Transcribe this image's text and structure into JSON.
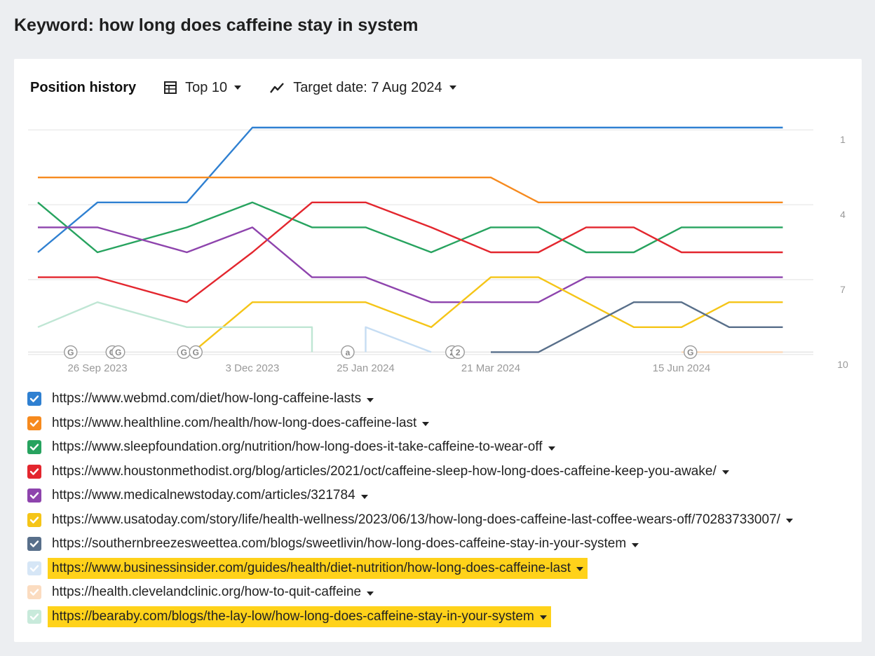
{
  "page": {
    "title": "Keyword: how long does caffeine stay in system"
  },
  "toolbar": {
    "title": "Position history",
    "top_label": "Top 10",
    "target_label": "Target date: 7 Aug 2024"
  },
  "icons": {
    "top": "table-icon",
    "target": "trend-line-icon",
    "check": "checkmark-icon",
    "dropdown": "caret-down-icon"
  },
  "chart_data": {
    "type": "line",
    "x_ticks": [
      "26 Sep 2023",
      "3 Dec 2023",
      "25 Jan 2024",
      "21 Mar 2024",
      "15 Jun 2024"
    ],
    "x_tick_index": [
      1.0,
      3.6,
      5.5,
      7.6,
      10.8
    ],
    "y_ticks": [
      "1",
      "4",
      "7",
      "10"
    ],
    "y_reversed": true,
    "ylim": [
      0,
      9
    ],
    "y_tick_values": [
      0.6,
      3.6,
      6.6,
      9.6
    ],
    "grid": true,
    "series": [
      {
        "name": "https://www.webmd.com/diet/how-long-caffeine-lasts",
        "color": "#2f80d1",
        "points": [
          [
            0,
            5
          ],
          [
            1,
            3
          ],
          [
            2.5,
            3
          ],
          [
            3.6,
            0
          ],
          [
            12.5,
            0
          ]
        ]
      },
      {
        "name": "https://www.healthline.com/health/how-long-does-caffeine-last",
        "color": "#f68a1e",
        "points": [
          [
            0,
            2
          ],
          [
            7.6,
            2
          ],
          [
            8.4,
            3
          ],
          [
            12.5,
            3
          ]
        ]
      },
      {
        "name": "https://www.sleepfoundation.org/nutrition/how-long-does-it-take-caffeine-to-wear-off",
        "color": "#27a35f",
        "points": [
          [
            0,
            3
          ],
          [
            1,
            5
          ],
          [
            2.5,
            4
          ],
          [
            3.6,
            3
          ],
          [
            4.6,
            4
          ],
          [
            5.5,
            4
          ],
          [
            6.6,
            5
          ],
          [
            7.6,
            4
          ],
          [
            8.4,
            4
          ],
          [
            9.2,
            5
          ],
          [
            10,
            5
          ],
          [
            10.8,
            4
          ],
          [
            12.5,
            4
          ]
        ]
      },
      {
        "name": "https://www.houstonmethodist.org/blog/articles/2021/oct/caffeine-sleep-how-long-does-caffeine-keep-you-awake/",
        "color": "#e3262e",
        "points": [
          [
            0,
            6
          ],
          [
            1,
            6
          ],
          [
            2.5,
            7
          ],
          [
            3.6,
            5
          ],
          [
            4.6,
            3
          ],
          [
            5.5,
            3
          ],
          [
            6.6,
            4
          ],
          [
            7.6,
            5
          ],
          [
            8.4,
            5
          ],
          [
            9.2,
            4
          ],
          [
            10,
            4
          ],
          [
            10.8,
            5
          ],
          [
            12.5,
            5
          ]
        ]
      },
      {
        "name": "https://www.medicalnewstoday.com/articles/321784",
        "color": "#8e44ad",
        "points": [
          [
            0,
            4
          ],
          [
            1,
            4
          ],
          [
            2.5,
            5
          ],
          [
            3.6,
            4
          ],
          [
            4.6,
            6
          ],
          [
            5.5,
            6
          ],
          [
            6.6,
            7
          ],
          [
            7.6,
            7
          ],
          [
            8.4,
            7
          ],
          [
            9.2,
            6
          ],
          [
            12.5,
            6
          ]
        ]
      },
      {
        "name": "https://www.usatoday.com/story/life/health-wellness/2023/06/13/how-long-does-caffeine-last-coffee-wears-off/70283733007/",
        "color": "#f5c518",
        "points": [
          [
            2.6,
            9
          ],
          [
            3.6,
            7
          ],
          [
            5.5,
            7
          ],
          [
            6.6,
            8
          ],
          [
            7.6,
            6
          ],
          [
            8.4,
            6
          ],
          [
            9.2,
            7
          ],
          [
            10,
            8
          ],
          [
            10.8,
            8
          ],
          [
            11.6,
            7
          ],
          [
            12.5,
            7
          ]
        ]
      },
      {
        "name": "https://southernbreezesweettea.com/blogs/sweetlivin/how-long-does-caffeine-stay-in-your-system",
        "color": "#586f8a",
        "points": [
          [
            7.6,
            9
          ],
          [
            8.4,
            9
          ],
          [
            9.2,
            8
          ],
          [
            10,
            7
          ],
          [
            10.8,
            7
          ],
          [
            11.6,
            8
          ],
          [
            12.5,
            8
          ]
        ]
      },
      {
        "name": "https://www.businessinsider.com/guides/health/diet-nutrition/how-long-does-caffeine-last",
        "color": "#c6ddf3",
        "points": [
          [
            5.5,
            9
          ],
          [
            5.5,
            8
          ],
          [
            6.6,
            9
          ]
        ]
      },
      {
        "name": "https://health.clevelandclinic.org/how-to-quit-caffeine",
        "color": "#fbd8b8",
        "points": [
          [
            10.8,
            9
          ],
          [
            12.5,
            9
          ]
        ]
      },
      {
        "name": "https://bearaby.com/blogs/the-lay-low/how-long-does-caffeine-stay-in-your-system",
        "color": "#bfe6d4",
        "points": [
          [
            0,
            8
          ],
          [
            1,
            7
          ],
          [
            2.5,
            8
          ],
          [
            4.6,
            8
          ],
          [
            4.6,
            9
          ]
        ]
      }
    ],
    "markers": [
      {
        "label": "G",
        "x": 0.55
      },
      {
        "label": "G",
        "x": 1.25
      },
      {
        "label": "G",
        "x": 1.35
      },
      {
        "label": "G",
        "x": 2.45
      },
      {
        "label": "G",
        "x": 2.65
      },
      {
        "label": "a",
        "x": 5.2
      },
      {
        "label": "2",
        "x": 6.95
      },
      {
        "label": "2",
        "x": 7.05
      },
      {
        "label": "G",
        "x": 10.95
      }
    ]
  },
  "legend": [
    {
      "url": "https://www.webmd.com/diet/how-long-caffeine-lasts",
      "color": "#2f80d1",
      "checked": true,
      "highlight": false
    },
    {
      "url": "https://www.healthline.com/health/how-long-does-caffeine-last",
      "color": "#f68a1e",
      "checked": true,
      "highlight": false
    },
    {
      "url": "https://www.sleepfoundation.org/nutrition/how-long-does-it-take-caffeine-to-wear-off",
      "color": "#27a35f",
      "checked": true,
      "highlight": false
    },
    {
      "url": "https://www.houstonmethodist.org/blog/articles/2021/oct/caffeine-sleep-how-long-does-caffeine-keep-you-awake/",
      "color": "#e3262e",
      "checked": true,
      "highlight": false
    },
    {
      "url": "https://www.medicalnewstoday.com/articles/321784",
      "color": "#8e44ad",
      "checked": true,
      "highlight": false
    },
    {
      "url": "https://www.usatoday.com/story/life/health-wellness/2023/06/13/how-long-does-caffeine-last-coffee-wears-off/70283733007/",
      "color": "#f5c518",
      "checked": true,
      "highlight": false
    },
    {
      "url": "https://southernbreezesweettea.com/blogs/sweetlivin/how-long-does-caffeine-stay-in-your-system",
      "color": "#586f8a",
      "checked": true,
      "highlight": false
    },
    {
      "url": "https://www.businessinsider.com/guides/health/diet-nutrition/how-long-does-caffeine-last",
      "color": "#d6e6f6",
      "checked": true,
      "highlight": true
    },
    {
      "url": "https://health.clevelandclinic.org/how-to-quit-caffeine",
      "color": "#fbdcc0",
      "checked": true,
      "highlight": false
    },
    {
      "url": "https://bearaby.com/blogs/the-lay-low/how-long-does-caffeine-stay-in-your-system",
      "color": "#c8eadb",
      "checked": true,
      "highlight": true
    }
  ]
}
